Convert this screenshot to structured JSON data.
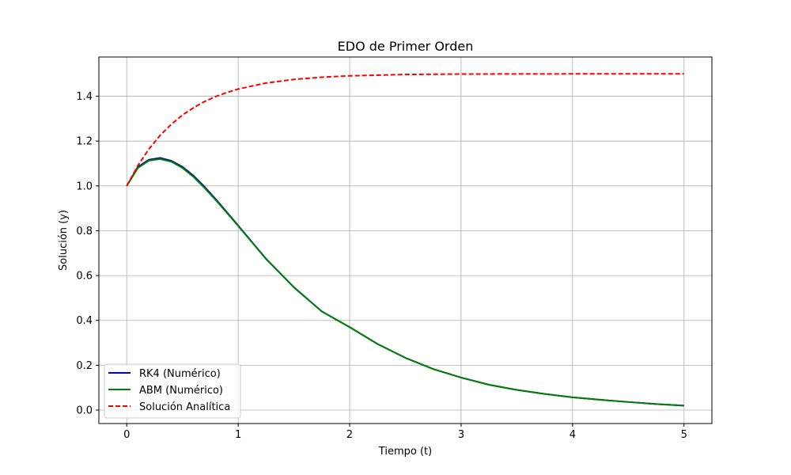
{
  "chart_data": {
    "type": "line",
    "title": "EDO de Primer Orden",
    "xlabel": "Tiempo (t)",
    "ylabel": "Solución (y)",
    "xlim": [
      -0.25,
      5.25
    ],
    "ylim": [
      -0.06,
      1.575
    ],
    "xticks": [
      0,
      1,
      2,
      3,
      4,
      5
    ],
    "xtick_labels": [
      "0",
      "1",
      "2",
      "3",
      "4",
      "5"
    ],
    "yticks": [
      0.0,
      0.2,
      0.4,
      0.6,
      0.8,
      1.0,
      1.2,
      1.4
    ],
    "ytick_labels": [
      "0.0",
      "0.2",
      "0.4",
      "0.6",
      "0.8",
      "1.0",
      "1.2",
      "1.4"
    ],
    "grid": true,
    "legend_position": "lower-left",
    "series": [
      {
        "name": "RK4 (Numérico)",
        "color": "#0000bf",
        "style": "solid",
        "x": [
          0,
          0.1,
          0.2,
          0.3,
          0.4,
          0.5,
          0.6,
          0.7,
          0.8,
          0.9,
          1.0,
          1.25,
          1.5,
          1.75,
          2.0,
          2.25,
          2.5,
          2.75,
          3.0,
          3.25,
          3.5,
          3.75,
          4.0,
          4.25,
          4.5,
          4.75,
          5.0
        ],
        "y": [
          1.0,
          1.085,
          1.117,
          1.125,
          1.112,
          1.085,
          1.045,
          0.995,
          0.94,
          0.882,
          0.823,
          0.675,
          0.548,
          0.44,
          0.37,
          0.295,
          0.233,
          0.183,
          0.145,
          0.113,
          0.09,
          0.072,
          0.057,
          0.046,
          0.036,
          0.027,
          0.02
        ]
      },
      {
        "name": "ABM (Numérico)",
        "color": "#008000",
        "style": "solid",
        "x": [
          0,
          0.1,
          0.2,
          0.3,
          0.4,
          0.5,
          0.6,
          0.7,
          0.8,
          0.9,
          1.0,
          1.25,
          1.5,
          1.75,
          2.0,
          2.25,
          2.5,
          2.75,
          3.0,
          3.25,
          3.5,
          3.75,
          4.0,
          4.25,
          4.5,
          4.75,
          5.0
        ],
        "y": [
          1.0,
          1.08,
          1.113,
          1.12,
          1.108,
          1.08,
          1.04,
          0.99,
          0.936,
          0.879,
          0.821,
          0.674,
          0.547,
          0.44,
          0.37,
          0.295,
          0.233,
          0.183,
          0.145,
          0.113,
          0.09,
          0.072,
          0.057,
          0.046,
          0.036,
          0.027,
          0.02
        ]
      },
      {
        "name": "Solución Analítica",
        "color": "#ff0000",
        "style": "dashed",
        "x": [
          0,
          0.1,
          0.2,
          0.3,
          0.4,
          0.5,
          0.6,
          0.7,
          0.8,
          0.9,
          1.0,
          1.25,
          1.5,
          1.75,
          2.0,
          2.5,
          3.0,
          3.5,
          4.0,
          4.5,
          5.0
        ],
        "y": [
          1.0,
          1.091,
          1.165,
          1.226,
          1.275,
          1.316,
          1.349,
          1.377,
          1.399,
          1.417,
          1.432,
          1.459,
          1.475,
          1.485,
          1.491,
          1.497,
          1.499,
          1.4995,
          1.4998,
          1.4999,
          1.5
        ]
      }
    ]
  }
}
